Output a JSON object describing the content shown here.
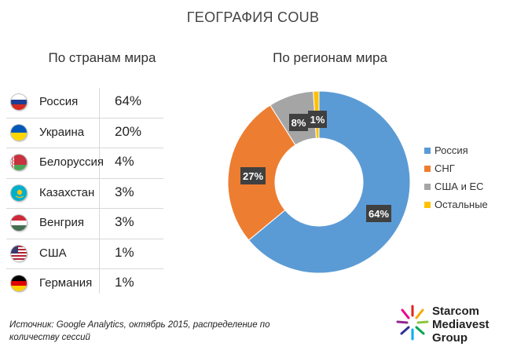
{
  "title": "ГЕОГРАФИЯ COUB",
  "left_subtitle": "По странам мира",
  "right_subtitle": "По регионам мира",
  "countries": [
    {
      "name": "Россия",
      "value": "64%",
      "flag": "russia-flag-icon"
    },
    {
      "name": "Украина",
      "value": "20%",
      "flag": "ukraine-flag-icon"
    },
    {
      "name": "Белоруссия",
      "value": "4%",
      "flag": "belarus-flag-icon"
    },
    {
      "name": "Казахстан",
      "value": "3%",
      "flag": "kazakhstan-flag-icon"
    },
    {
      "name": "Венгрия",
      "value": "3%",
      "flag": "hungary-flag-icon"
    },
    {
      "name": "США",
      "value": "1%",
      "flag": "usa-flag-icon"
    },
    {
      "name": "Германия",
      "value": "1%",
      "flag": "germany-flag-icon"
    }
  ],
  "chart_data": {
    "type": "pie",
    "donut": true,
    "title": "По регионам мира",
    "categories": [
      "Россия",
      "СНГ",
      "США и ЕС",
      "Остальные"
    ],
    "values": [
      64,
      27,
      8,
      1
    ],
    "labels": [
      "64%",
      "27%",
      "8%",
      "1%"
    ],
    "colors": [
      "#5b9bd5",
      "#ed7d31",
      "#a5a5a5",
      "#ffc000"
    ],
    "legend": "right"
  },
  "source": "Источник: Google Analytics, октябрь 2015, распределение по количеству сессий",
  "logo": {
    "lines": [
      "Starcom",
      "Mediavest",
      "Group"
    ],
    "mark": "starburst-logo-icon"
  }
}
